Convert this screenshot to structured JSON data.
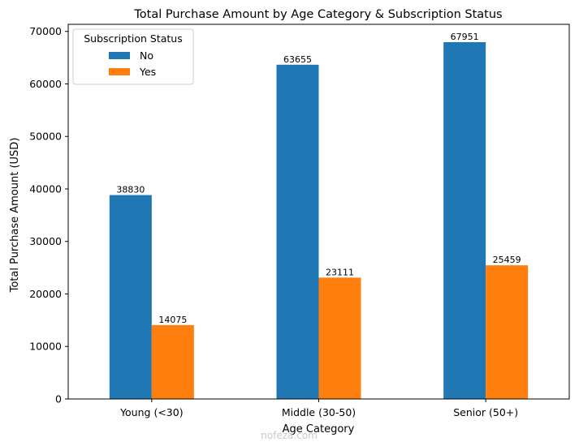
{
  "chart_data": {
    "type": "bar",
    "title": "Total Purchase Amount by Age Category & Subscription Status",
    "xlabel": "Age Category",
    "ylabel": "Total Purchase Amount (USD)",
    "categories": [
      "Young (<30)",
      "Middle (30-50)",
      "Senior (50+)"
    ],
    "series": [
      {
        "name": "No",
        "color": "#1f77b4",
        "values": [
          38830,
          63655,
          67951
        ]
      },
      {
        "name": "Yes",
        "color": "#ff7f0e",
        "values": [
          14075,
          23111,
          25459
        ]
      }
    ],
    "ylim": [
      0,
      71348
    ],
    "yticks": [
      0,
      10000,
      20000,
      30000,
      40000,
      50000,
      60000,
      70000
    ],
    "data_labels": true,
    "grid": false,
    "legend": {
      "title": "Subscription Status",
      "placement": "top-left"
    }
  },
  "watermark": {
    "text": "nofeza.com"
  }
}
